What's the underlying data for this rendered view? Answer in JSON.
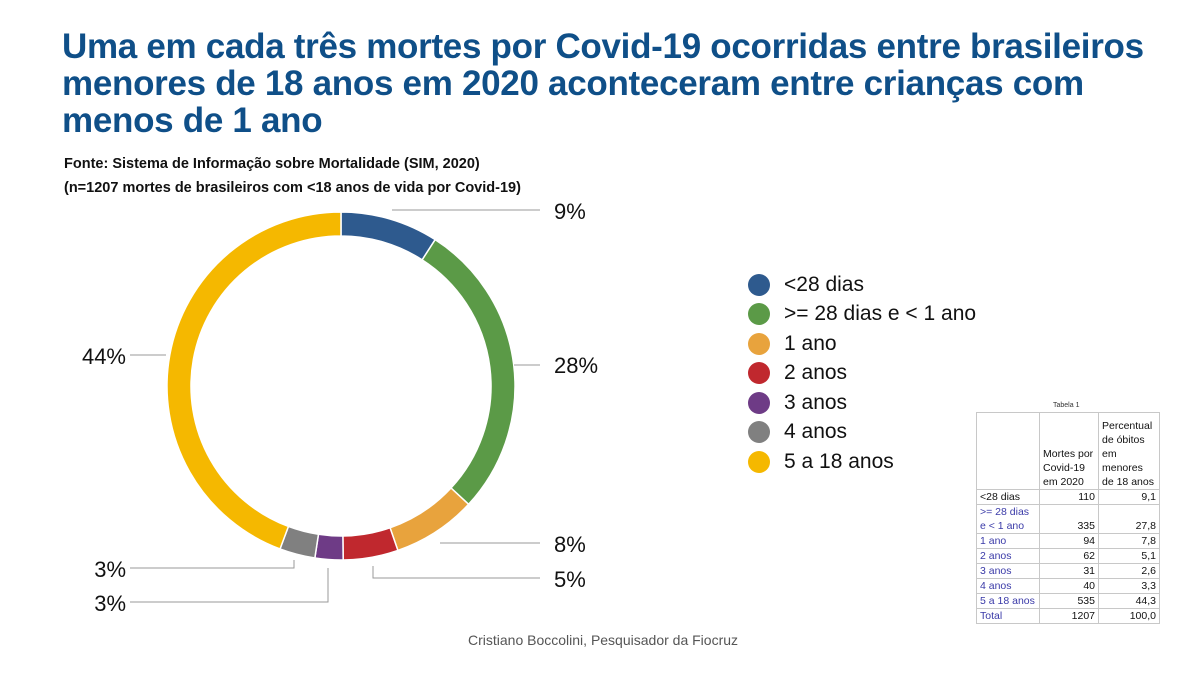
{
  "title": "Uma em cada três mortes por Covid-19 ocorridas entre brasileiros menores de 18 anos em 2020 aconteceram entre crianças com menos de 1 ano",
  "source_line1": "Fonte: Sistema de Informação sobre Mortalidade (SIM, 2020)",
  "source_line2": "(n=1207 mortes de brasileiros com <18 anos de vida por Covid-19)",
  "credit": "Cristiano Boccolini, Pesquisador da Fiocruz",
  "chart_data": {
    "type": "pie",
    "donut": true,
    "categories": [
      "<28 dias",
      ">= 28 dias e < 1 ano",
      "1 ano",
      "2 anos",
      "3 anos",
      "4 anos",
      "5 a 18 anos"
    ],
    "values": [
      9.1,
      27.8,
      7.8,
      5.1,
      2.6,
      3.3,
      44.3
    ],
    "data_labels": [
      "9%",
      "28%",
      "8%",
      "5%",
      "3%",
      "3%",
      "44%"
    ],
    "colors": [
      "#2e5a8e",
      "#5b9a47",
      "#e8a33d",
      "#c0282e",
      "#6e3b86",
      "#808080",
      "#f5b800"
    ],
    "legend_position": "right"
  },
  "table": {
    "caption": "Tabela 1",
    "headers": [
      "",
      "Mortes por Covid-19 em 2020",
      "Percentual de óbitos em menores de 18 anos"
    ],
    "rows": [
      [
        "<28 dias",
        "110",
        "9,1"
      ],
      [
        ">= 28 dias e < 1 ano",
        "335",
        "27,8"
      ],
      [
        "1 ano",
        "94",
        "7,8"
      ],
      [
        "2 anos",
        "62",
        "5,1"
      ],
      [
        "3 anos",
        "31",
        "2,6"
      ],
      [
        "4 anos",
        "40",
        "3,3"
      ],
      [
        "5 a 18 anos",
        "535",
        "44,3"
      ],
      [
        "Total",
        "1207",
        "100,0"
      ]
    ]
  }
}
